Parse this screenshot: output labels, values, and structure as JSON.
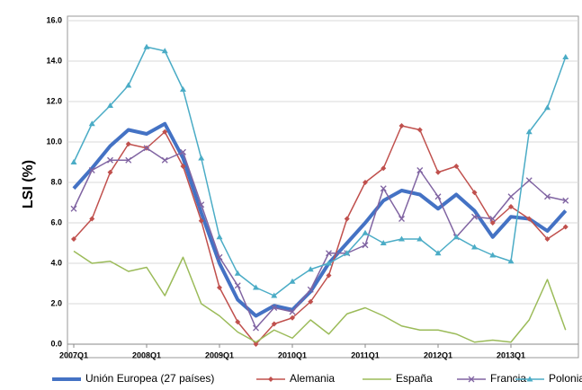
{
  "chart_data": {
    "type": "line",
    "y_label": "LSI (%)",
    "categories": [
      "2007Q1",
      null,
      null,
      null,
      "2008Q1",
      null,
      null,
      null,
      "2009Q1",
      null,
      null,
      null,
      "2010Q1",
      null,
      null,
      null,
      "2011Q1",
      null,
      null,
      null,
      "2012Q1",
      null,
      null,
      null,
      "2013Q1",
      null,
      null,
      null
    ],
    "series": [
      {
        "name": "Unión Europea (27 países)",
        "color": "#4472c4",
        "marker": "none",
        "width": 4,
        "values": [
          7.7,
          8.7,
          9.8,
          10.6,
          10.4,
          10.9,
          9.2,
          6.5,
          4.0,
          2.2,
          1.4,
          1.9,
          1.7,
          2.6,
          4.0,
          5.0,
          6.0,
          7.1,
          7.6,
          7.4,
          6.7,
          7.4,
          6.6,
          5.3,
          6.3,
          6.2,
          5.6,
          6.6
        ]
      },
      {
        "name": "Alemania",
        "color": "#c0504d",
        "marker": "diamond",
        "width": 1.5,
        "values": [
          5.2,
          6.2,
          8.5,
          9.9,
          9.7,
          10.5,
          8.8,
          6.1,
          2.8,
          1.1,
          0.0,
          1.0,
          1.3,
          2.1,
          3.4,
          6.2,
          8.0,
          8.7,
          10.8,
          10.6,
          8.5,
          8.8,
          7.5,
          6.0,
          6.8,
          6.2,
          5.2,
          5.8
        ]
      },
      {
        "name": "España",
        "color": "#9bbb59",
        "marker": "none",
        "width": 1.5,
        "values": [
          4.6,
          4.0,
          4.1,
          3.6,
          3.8,
          2.4,
          4.3,
          2.0,
          1.4,
          0.6,
          0.1,
          0.7,
          0.3,
          1.2,
          0.5,
          1.5,
          1.8,
          1.4,
          0.9,
          0.7,
          0.7,
          0.5,
          0.1,
          0.2,
          0.1,
          1.2,
          3.2,
          0.7
        ]
      },
      {
        "name": "Francia",
        "color": "#8064a2",
        "marker": "x",
        "width": 1.5,
        "values": [
          6.7,
          8.6,
          9.1,
          9.1,
          9.7,
          9.1,
          9.5,
          6.9,
          4.3,
          2.9,
          0.8,
          1.8,
          1.6,
          2.7,
          4.5,
          4.5,
          4.9,
          7.7,
          6.2,
          8.6,
          7.3,
          5.3,
          6.3,
          6.2,
          7.3,
          8.1,
          7.3,
          7.1
        ]
      },
      {
        "name": "Polonia",
        "color": "#4bacc6",
        "marker": "triangle",
        "width": 1.5,
        "values": [
          9.0,
          10.9,
          11.8,
          12.8,
          14.7,
          14.5,
          12.6,
          9.2,
          5.3,
          3.5,
          2.8,
          2.4,
          3.1,
          3.7,
          4.0,
          4.5,
          5.5,
          5.0,
          5.2,
          5.2,
          4.5,
          5.3,
          4.8,
          4.4,
          4.1,
          10.5,
          11.7,
          14.2
        ]
      }
    ],
    "ylim": [
      0,
      16
    ],
    "yticks": [
      {
        "value": 0,
        "label": "0.0"
      },
      {
        "value": 2,
        "label": "2.0"
      },
      {
        "value": 4,
        "label": "4.0"
      },
      {
        "value": 6,
        "label": "6.0"
      },
      {
        "value": 8,
        "label": "8.0"
      },
      {
        "value": 10,
        "label": "10.0"
      },
      {
        "value": 12,
        "label": "12.0"
      },
      {
        "value": 14,
        "label": "14.0"
      },
      {
        "value": 16,
        "label": "16.0"
      }
    ],
    "grid": true,
    "legend": "bottom"
  }
}
